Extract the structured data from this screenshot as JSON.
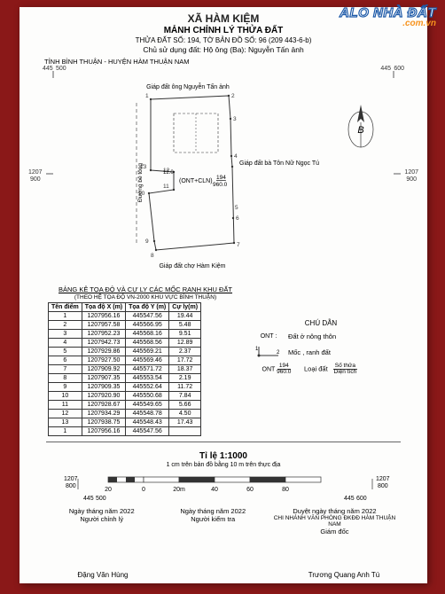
{
  "watermark": {
    "line1": "ALO NHÀ ĐẤT",
    "line2": ".com.vn"
  },
  "header": {
    "xa": "XÃ HÀM KIỆM",
    "manh": "MẢNH CHỈNH LÝ THỬA ĐẤT",
    "thua": "THỬA ĐẤT SỐ: 194, TỜ BẢN ĐỒ SỐ: 96 (209 443-6-b)",
    "chu_label": "Chủ sử dụng đất:",
    "chu_value": "Hộ ông (Ba): Nguyễn Tấn ảnh"
  },
  "province": "TỈNH BÌNH THUẬN - HUYỆN HÀM THUẬN NAM",
  "map": {
    "top_coord_left": "445",
    "top_coord_right": "445",
    "top_coord_left2": "500",
    "top_coord_right2": "600",
    "side_left": "1207",
    "side_left2": "900",
    "side_right": "1207",
    "side_right2": "900",
    "label_north": "Giáp đất ông Nguyễn Tấn ảnh",
    "label_east": "Giáp đất bà Tôn Nữ Ngọc Tú",
    "label_south": "Giáp đất chợ Hàm Kiệm",
    "label_west": "Đường bê tông",
    "parcel_text1": "(ONT+CLN)",
    "parcel_frac_top": "194",
    "parcel_frac_bot": "960.0",
    "compass": "B",
    "points": [
      "1",
      "2",
      "3",
      "4",
      "5",
      "6",
      "7",
      "8",
      "9",
      "10",
      "11",
      "12",
      "13"
    ],
    "road_width": "12.0"
  },
  "table": {
    "title": "BẢNG KÊ TỌA ĐỘ VÀ CỰ LY CÁC MỐC RANH KHU ĐẤT",
    "subtitle": "(THEO HỆ TỌA ĐỘ VN-2000 KHU VỰC BÌNH THUẬN)",
    "headers": [
      "Tên điểm",
      "Tọa độ X (m)",
      "Tọa độ Y (m)",
      "Cự ly(m)"
    ],
    "rows": [
      [
        "1",
        "1207956.16",
        "445547.56",
        "19.44"
      ],
      [
        "2",
        "1207957.58",
        "445566.95",
        "5.48"
      ],
      [
        "3",
        "1207952.23",
        "445568.16",
        "9.51"
      ],
      [
        "4",
        "1207942.73",
        "445568.56",
        "12.89"
      ],
      [
        "5",
        "1207929.86",
        "445569.21",
        "2.37"
      ],
      [
        "6",
        "1207927.50",
        "445569.46",
        "17.72"
      ],
      [
        "7",
        "1207909.92",
        "445571.72",
        "18.37"
      ],
      [
        "8",
        "1207907.35",
        "445553.54",
        "2.19"
      ],
      [
        "9",
        "1207909.35",
        "445552.64",
        "11.72"
      ],
      [
        "10",
        "1207920.90",
        "445550.68",
        "7.84"
      ],
      [
        "11",
        "1207928.67",
        "445549.65",
        "5.66"
      ],
      [
        "12",
        "1207934.29",
        "445548.78",
        "4.50"
      ],
      [
        "13",
        "1207938.75",
        "445548.43",
        "17.43"
      ],
      [
        "1",
        "1207956.16",
        "445547.56",
        ""
      ]
    ]
  },
  "legend": {
    "title": "CHÚ DẪN",
    "rows": [
      {
        "sym": "ONT :",
        "text": "Đất ở nông thôn"
      },
      {
        "sym_svg": "corner",
        "text": "Mốc , ranh đất"
      },
      {
        "sym": "ONT",
        "frac_top": "194",
        "frac_bot": "960.0",
        "text": "Loại đất",
        "text2": "Số thửa",
        "text3": "Diện tích"
      }
    ]
  },
  "scale": {
    "ratio": "Tỉ lệ 1:1000",
    "note": "1 cm trên bản đồ bằng 10 m trên thực địa",
    "ticks": [
      "20",
      "0",
      "20m",
      "40",
      "60",
      "80"
    ],
    "bl_left1": "1207",
    "bl_left2": "800",
    "bl_tl1": "445",
    "bl_tl2": "500",
    "bl_tr1": "445",
    "bl_tr2": "600",
    "br_right1": "1207",
    "br_right2": "800"
  },
  "signatures": {
    "date_tmpl": "Ngày     tháng     năm 2022",
    "col1_role": "Người chỉnh lý",
    "col2_role": "Người kiểm tra",
    "col3_line": "Duyệt ngày     tháng     năm 2022",
    "col3_org": "CHI NHÁNH VĂN PHÒNG ĐKĐĐ HÀM THUẬN NAM",
    "col3_role": "Giám đốc",
    "name1": "Đặng Văn Hùng",
    "name3": "Trương Quang Anh Tú"
  }
}
